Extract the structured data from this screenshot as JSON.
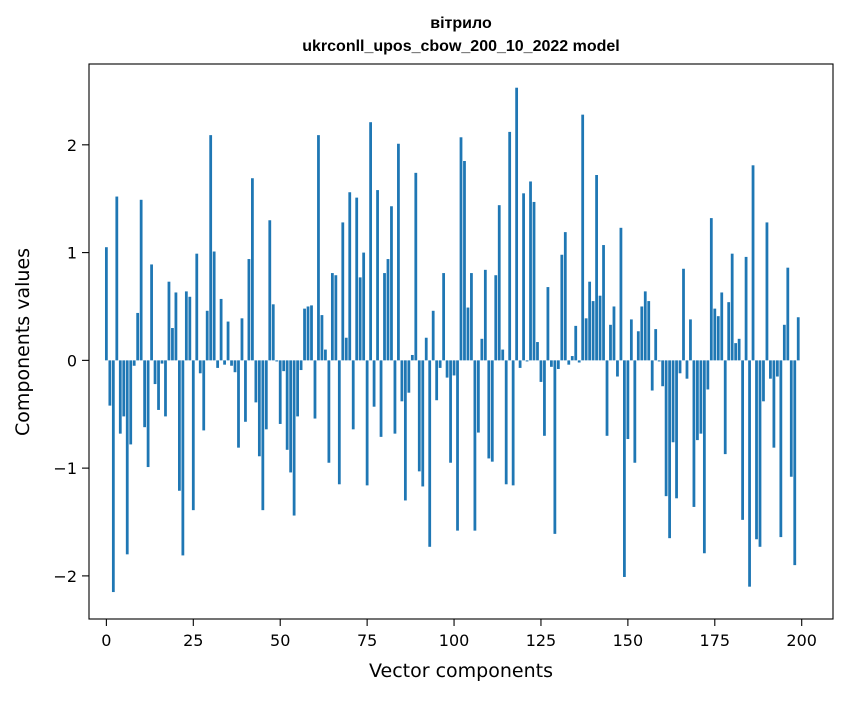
{
  "chart_data": {
    "type": "bar",
    "title": "вітрило",
    "subtitle": "ukrconll_upos_cbow_200_10_2022 model",
    "xlabel": "Vector components",
    "ylabel": "Components values",
    "xlim": [
      -5,
      209
    ],
    "ylim": [
      -2.4,
      2.75
    ],
    "xticks": [
      0,
      25,
      50,
      75,
      100,
      125,
      150,
      175,
      200
    ],
    "xtick_labels": [
      "0",
      "25",
      "50",
      "75",
      "100",
      "125",
      "150",
      "175",
      "200"
    ],
    "yticks": [
      -2,
      -1,
      0,
      1,
      2
    ],
    "ytick_labels": [
      "−2",
      "−1",
      "0",
      "1",
      "2"
    ],
    "grid": false,
    "bar_color": "#1f77b4",
    "x": [
      0,
      1,
      2,
      3,
      4,
      5,
      6,
      7,
      8,
      9,
      10,
      11,
      12,
      13,
      14,
      15,
      16,
      17,
      18,
      19,
      20,
      21,
      22,
      23,
      24,
      25,
      26,
      27,
      28,
      29,
      30,
      31,
      32,
      33,
      34,
      35,
      36,
      37,
      38,
      39,
      40,
      41,
      42,
      43,
      44,
      45,
      46,
      47,
      48,
      49,
      50,
      51,
      52,
      53,
      54,
      55,
      56,
      57,
      58,
      59,
      60,
      61,
      62,
      63,
      64,
      65,
      66,
      67,
      68,
      69,
      70,
      71,
      72,
      73,
      74,
      75,
      76,
      77,
      78,
      79,
      80,
      81,
      82,
      83,
      84,
      85,
      86,
      87,
      88,
      89,
      90,
      91,
      92,
      93,
      94,
      95,
      96,
      97,
      98,
      99,
      100,
      101,
      102,
      103,
      104,
      105,
      106,
      107,
      108,
      109,
      110,
      111,
      112,
      113,
      114,
      115,
      116,
      117,
      118,
      119,
      120,
      121,
      122,
      123,
      124,
      125,
      126,
      127,
      128,
      129,
      130,
      131,
      132,
      133,
      134,
      135,
      136,
      137,
      138,
      139,
      140,
      141,
      142,
      143,
      144,
      145,
      146,
      147,
      148,
      149,
      150,
      151,
      152,
      153,
      154,
      155,
      156,
      157,
      158,
      159,
      160,
      161,
      162,
      163,
      164,
      165,
      166,
      167,
      168,
      169,
      170,
      171,
      172,
      173,
      174,
      175,
      176,
      177,
      178,
      179,
      180,
      181,
      182,
      183,
      184,
      185,
      186,
      187,
      188,
      189,
      190,
      191,
      192,
      193,
      194,
      195,
      196,
      197,
      198,
      199
    ],
    "values": [
      1.05,
      -0.42,
      -2.15,
      1.52,
      -0.68,
      -0.52,
      -1.8,
      -0.78,
      -0.05,
      0.44,
      1.49,
      -0.62,
      -0.99,
      0.89,
      -0.22,
      -0.46,
      -0.03,
      -0.52,
      0.73,
      0.3,
      0.63,
      -1.21,
      -1.81,
      0.64,
      0.59,
      -1.39,
      0.99,
      -0.12,
      -0.65,
      0.46,
      2.09,
      1.01,
      -0.07,
      0.57,
      -0.04,
      0.36,
      -0.05,
      -0.11,
      -0.81,
      0.39,
      -0.57,
      0.94,
      1.69,
      -0.39,
      -0.89,
      -1.39,
      -0.64,
      1.3,
      0.52,
      -0.01,
      -0.59,
      -0.1,
      -0.83,
      -1.04,
      -1.44,
      -0.52,
      -0.09,
      0.48,
      0.5,
      0.51,
      -0.54,
      2.09,
      0.42,
      0.1,
      -0.95,
      0.81,
      0.79,
      -1.15,
      1.28,
      0.21,
      1.56,
      -0.64,
      1.51,
      0.77,
      1.0,
      -1.16,
      2.21,
      -0.43,
      1.58,
      -0.71,
      0.81,
      0.94,
      1.43,
      -0.68,
      2.01,
      -0.38,
      -1.3,
      -0.3,
      0.05,
      1.74,
      -1.03,
      -1.17,
      0.21,
      -1.73,
      0.46,
      -0.37,
      -0.07,
      0.81,
      -0.16,
      -0.95,
      -0.14,
      -1.58,
      2.07,
      1.85,
      0.49,
      0.81,
      -1.58,
      -0.67,
      0.2,
      0.84,
      -0.91,
      -0.94,
      0.79,
      1.44,
      0.1,
      -1.15,
      2.12,
      -1.16,
      2.53,
      -0.07,
      1.55,
      -0.01,
      1.66,
      1.47,
      0.17,
      -0.2,
      -0.7,
      0.68,
      -0.06,
      -1.61,
      -0.08,
      0.98,
      1.19,
      -0.04,
      0.04,
      0.32,
      -0.02,
      2.28,
      0.39,
      0.73,
      0.55,
      1.72,
      0.6,
      1.07,
      -0.7,
      0.33,
      0.5,
      -0.15,
      1.23,
      -2.01,
      -0.73,
      0.38,
      -0.95,
      0.27,
      0.5,
      0.64,
      0.55,
      -0.28,
      0.29,
      -0.01,
      -0.24,
      -1.26,
      -1.65,
      -0.76,
      -1.28,
      -0.12,
      0.85,
      -0.17,
      0.38,
      -1.36,
      -0.74,
      -0.68,
      -1.79,
      -0.27,
      1.32,
      0.48,
      0.41,
      0.63,
      -0.87,
      0.54,
      0.99,
      0.16,
      0.2,
      -1.48,
      0.96,
      -2.1,
      1.81,
      -1.66,
      -1.73,
      -0.38,
      1.28,
      -0.17,
      -0.81,
      -0.15,
      -1.64,
      0.33,
      0.86,
      -1.08,
      -1.9,
      0.4
    ]
  }
}
